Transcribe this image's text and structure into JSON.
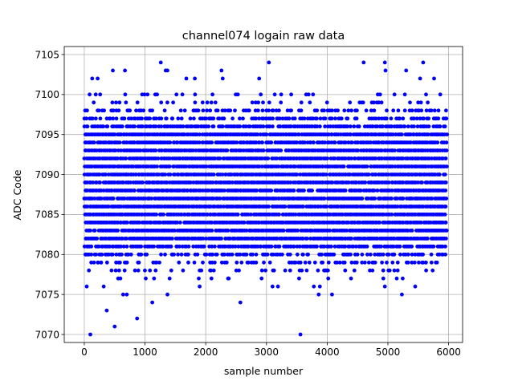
{
  "chart_data": {
    "type": "scatter",
    "title": "channel074 logain raw data",
    "xlabel": "sample number",
    "ylabel": "ADC Code",
    "xlim": [
      -330,
      6230
    ],
    "ylim": [
      7069,
      7106
    ],
    "x_ticks": [
      0,
      1000,
      2000,
      3000,
      4000,
      5000,
      6000
    ],
    "y_ticks": [
      7070,
      7075,
      7080,
      7085,
      7090,
      7095,
      7100,
      7105
    ],
    "grid": true,
    "marker_color": "#0000ff",
    "series": [
      {
        "n_samples": 6000,
        "x_start": 0,
        "x_end": 5950,
        "x_step": 25,
        "dense_levels": [
          7081,
          7082,
          7083,
          7084,
          7085,
          7086,
          7087,
          7088,
          7089,
          7090,
          7091,
          7092,
          7093,
          7094,
          7095,
          7096
        ],
        "sparse_levels": [
          7077,
          7078,
          7079,
          7080,
          7097,
          7098,
          7099,
          7100
        ],
        "outliers": [
          {
            "x": 100,
            "y": 7070
          },
          {
            "x": 3560,
            "y": 7070
          },
          {
            "x": 500,
            "y": 7071
          },
          {
            "x": 870,
            "y": 7072
          },
          {
            "x": 370,
            "y": 7073
          },
          {
            "x": 1120,
            "y": 7074
          },
          {
            "x": 2570,
            "y": 7074
          },
          {
            "x": 640,
            "y": 7075
          },
          {
            "x": 700,
            "y": 7075
          },
          {
            "x": 1370,
            "y": 7075
          },
          {
            "x": 3860,
            "y": 7075
          },
          {
            "x": 4080,
            "y": 7075
          },
          {
            "x": 5230,
            "y": 7075
          },
          {
            "x": 40,
            "y": 7076
          },
          {
            "x": 320,
            "y": 7076
          },
          {
            "x": 1900,
            "y": 7076
          },
          {
            "x": 3100,
            "y": 7076
          },
          {
            "x": 3190,
            "y": 7076
          },
          {
            "x": 3780,
            "y": 7076
          },
          {
            "x": 3880,
            "y": 7076
          },
          {
            "x": 5450,
            "y": 7076
          },
          {
            "x": 4950,
            "y": 7076
          },
          {
            "x": 130,
            "y": 7102
          },
          {
            "x": 220,
            "y": 7102
          },
          {
            "x": 1680,
            "y": 7102
          },
          {
            "x": 1820,
            "y": 7102
          },
          {
            "x": 2280,
            "y": 7102
          },
          {
            "x": 2880,
            "y": 7102
          },
          {
            "x": 5530,
            "y": 7102
          },
          {
            "x": 5760,
            "y": 7102
          },
          {
            "x": 470,
            "y": 7103
          },
          {
            "x": 670,
            "y": 7103
          },
          {
            "x": 1340,
            "y": 7103
          },
          {
            "x": 1370,
            "y": 7103
          },
          {
            "x": 2260,
            "y": 7103
          },
          {
            "x": 5300,
            "y": 7103
          },
          {
            "x": 4960,
            "y": 7103
          },
          {
            "x": 1260,
            "y": 7104
          },
          {
            "x": 3040,
            "y": 7104
          },
          {
            "x": 4600,
            "y": 7104
          },
          {
            "x": 4950,
            "y": 7104
          },
          {
            "x": 5580,
            "y": 7104
          }
        ]
      }
    ]
  }
}
